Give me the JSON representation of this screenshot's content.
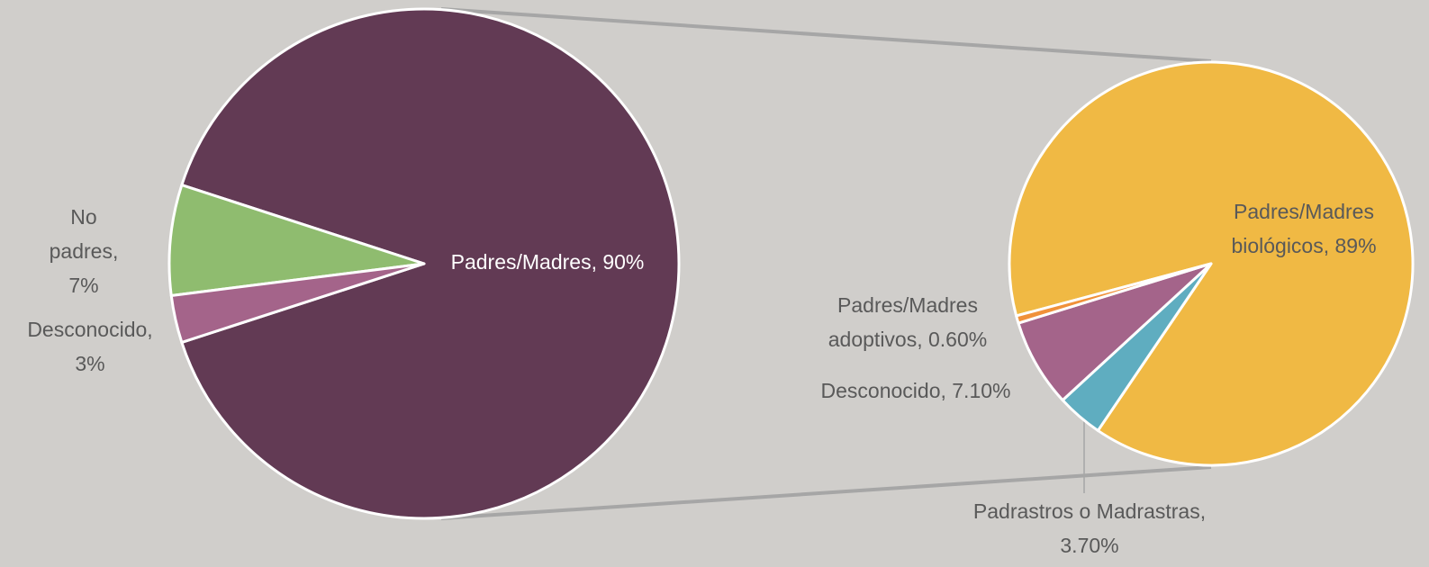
{
  "chart_data": [
    {
      "type": "pie",
      "labels": [
        [
          "Padres/Madres, 90%"
        ],
        [
          "No",
          "padres,",
          "7%"
        ],
        [
          "Desconocido,",
          "3%"
        ]
      ],
      "values": [
        90,
        7,
        3
      ],
      "colors": [
        "#623a54",
        "#8fbc6f",
        "#a4648a"
      ]
    },
    {
      "type": "pie",
      "labels": [
        [
          "Padres/Madres",
          "biológicos, 89%"
        ],
        [
          "Padrastros o Madrastras,",
          "3.70%"
        ],
        [
          "Desconocido, 7.10%"
        ],
        [
          "Padres/Madres",
          "adoptivos, 0.60%"
        ]
      ],
      "values": [
        89,
        3.7,
        7.1,
        0.6
      ],
      "colors": [
        "#f0b944",
        "#5fadc0",
        "#a4648a",
        "#f0913a"
      ]
    }
  ]
}
